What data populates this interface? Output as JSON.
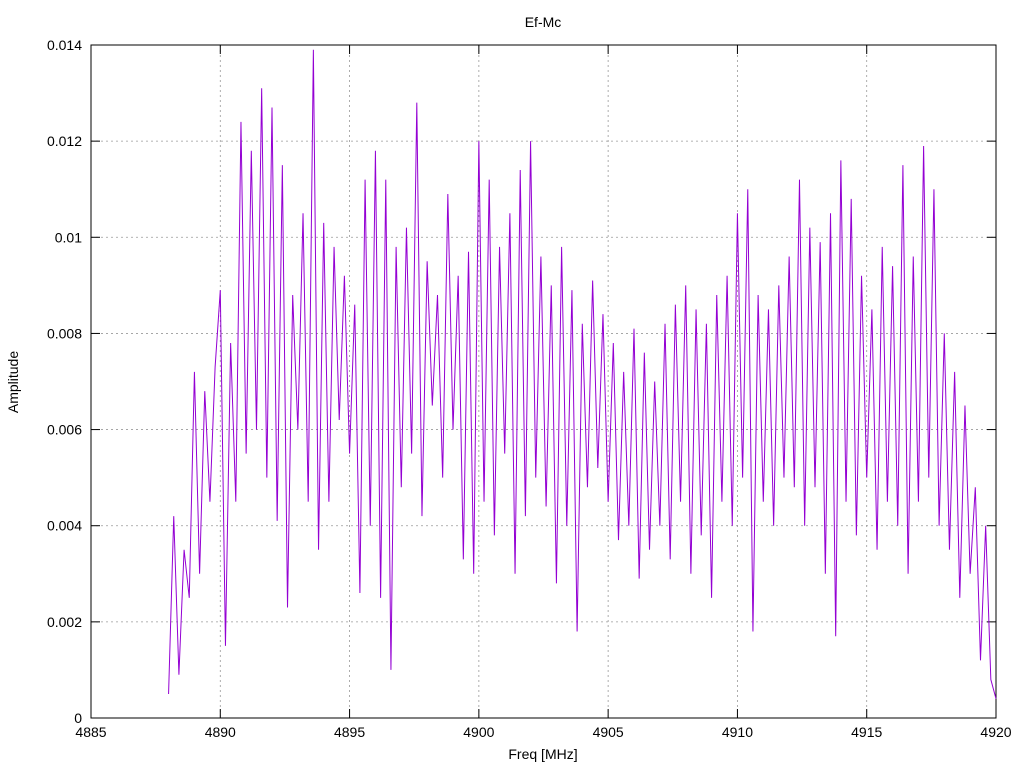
{
  "chart_data": {
    "type": "line",
    "title": "Ef-Mc",
    "x_label": "Freq [MHz]",
    "y_label": "Amplitude",
    "xlim": [
      4885,
      4920
    ],
    "xticks": [
      4885,
      4890,
      4895,
      4900,
      4905,
      4910,
      4915,
      4920
    ],
    "ylim": [
      0,
      0.014
    ],
    "yticks": [
      0,
      0.002,
      0.004,
      0.006,
      0.008,
      0.01,
      0.012,
      0.014
    ],
    "grid": true,
    "series": [
      {
        "color": "#9400d3",
        "x": [
          4888.0,
          4888.2,
          4888.4,
          4888.6,
          4888.8,
          4889.0,
          4889.2,
          4889.4,
          4889.6,
          4889.8,
          4890.0,
          4890.2,
          4890.4,
          4890.6,
          4890.8,
          4891.0,
          4891.2,
          4891.4,
          4891.6,
          4891.8,
          4892.0,
          4892.2,
          4892.4,
          4892.6,
          4892.8,
          4893.0,
          4893.2,
          4893.4,
          4893.6,
          4893.8,
          4894.0,
          4894.2,
          4894.4,
          4894.6,
          4894.8,
          4895.0,
          4895.2,
          4895.4,
          4895.6,
          4895.8,
          4896.0,
          4896.2,
          4896.4,
          4896.6,
          4896.8,
          4897.0,
          4897.2,
          4897.4,
          4897.6,
          4897.8,
          4898.0,
          4898.2,
          4898.4,
          4898.6,
          4898.8,
          4899.0,
          4899.2,
          4899.4,
          4899.6,
          4899.8,
          4900.0,
          4900.2,
          4900.4,
          4900.6,
          4900.8,
          4901.0,
          4901.2,
          4901.4,
          4901.6,
          4901.8,
          4902.0,
          4902.2,
          4902.4,
          4902.6,
          4902.8,
          4903.0,
          4903.2,
          4903.4,
          4903.6,
          4903.8,
          4904.0,
          4904.2,
          4904.4,
          4904.6,
          4904.8,
          4905.0,
          4905.2,
          4905.4,
          4905.6,
          4905.8,
          4906.0,
          4906.2,
          4906.4,
          4906.6,
          4906.8,
          4907.0,
          4907.2,
          4907.4,
          4907.6,
          4907.8,
          4908.0,
          4908.2,
          4908.4,
          4908.6,
          4908.8,
          4909.0,
          4909.2,
          4909.4,
          4909.6,
          4909.8,
          4910.0,
          4910.2,
          4910.4,
          4910.6,
          4910.8,
          4911.0,
          4911.2,
          4911.4,
          4911.6,
          4911.8,
          4912.0,
          4912.2,
          4912.4,
          4912.6,
          4912.8,
          4913.0,
          4913.2,
          4913.4,
          4913.6,
          4913.8,
          4914.0,
          4914.2,
          4914.4,
          4914.6,
          4914.8,
          4915.0,
          4915.2,
          4915.4,
          4915.6,
          4915.8,
          4916.0,
          4916.2,
          4916.4,
          4916.6,
          4916.8,
          4917.0,
          4917.2,
          4917.4,
          4917.6,
          4917.8,
          4918.0,
          4918.2,
          4918.4,
          4918.6,
          4918.8,
          4919.0,
          4919.2,
          4919.4,
          4919.6,
          4919.8,
          4920.0
        ],
        "values": [
          0.0005,
          0.0042,
          0.0009,
          0.0035,
          0.0025,
          0.0072,
          0.003,
          0.0068,
          0.0045,
          0.0073,
          0.0089,
          0.0015,
          0.0078,
          0.0045,
          0.0124,
          0.0055,
          0.0118,
          0.006,
          0.0131,
          0.005,
          0.0127,
          0.0041,
          0.0115,
          0.0023,
          0.0088,
          0.006,
          0.0105,
          0.0045,
          0.0139,
          0.0035,
          0.0103,
          0.0045,
          0.0098,
          0.0062,
          0.0092,
          0.0055,
          0.0086,
          0.0026,
          0.0112,
          0.004,
          0.0118,
          0.0025,
          0.0112,
          0.001,
          0.0098,
          0.0048,
          0.0102,
          0.0055,
          0.0128,
          0.0042,
          0.0095,
          0.0065,
          0.0088,
          0.005,
          0.0109,
          0.006,
          0.0092,
          0.0033,
          0.0097,
          0.003,
          0.012,
          0.0045,
          0.0112,
          0.0038,
          0.0098,
          0.0055,
          0.0105,
          0.003,
          0.0114,
          0.0042,
          0.012,
          0.005,
          0.0096,
          0.0044,
          0.009,
          0.0028,
          0.0098,
          0.004,
          0.0089,
          0.0018,
          0.0082,
          0.0048,
          0.0091,
          0.0052,
          0.0084,
          0.0045,
          0.0078,
          0.0037,
          0.0072,
          0.004,
          0.0081,
          0.0029,
          0.0076,
          0.0035,
          0.007,
          0.004,
          0.0082,
          0.0033,
          0.0086,
          0.0045,
          0.009,
          0.003,
          0.0085,
          0.0038,
          0.0082,
          0.0025,
          0.0088,
          0.0045,
          0.0092,
          0.004,
          0.0105,
          0.005,
          0.011,
          0.0018,
          0.0088,
          0.0045,
          0.0085,
          0.004,
          0.009,
          0.005,
          0.0096,
          0.0048,
          0.0112,
          0.004,
          0.0102,
          0.0048,
          0.0099,
          0.003,
          0.0105,
          0.0017,
          0.0116,
          0.0045,
          0.0108,
          0.0038,
          0.0092,
          0.005,
          0.0085,
          0.0035,
          0.0098,
          0.0045,
          0.0094,
          0.004,
          0.0115,
          0.003,
          0.0096,
          0.0045,
          0.0119,
          0.005,
          0.011,
          0.004,
          0.008,
          0.0035,
          0.0072,
          0.0025,
          0.0065,
          0.003,
          0.0048,
          0.0012,
          0.004,
          0.0008,
          0.0004
        ]
      }
    ]
  }
}
